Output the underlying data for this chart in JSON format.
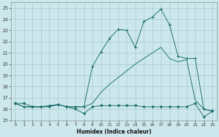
{
  "title": "",
  "xlabel": "Humidex (Indice chaleur)",
  "bg_color": "#cce8ec",
  "grid_color": "#aacdd4",
  "line_color": "#1a6b6b",
  "xlim": [
    -0.5,
    23.5
  ],
  "ylim": [
    15,
    25.5
  ],
  "yticks": [
    15,
    16,
    17,
    18,
    19,
    20,
    21,
    22,
    23,
    24,
    25
  ],
  "xticks": [
    0,
    1,
    2,
    3,
    4,
    5,
    6,
    7,
    8,
    9,
    10,
    11,
    12,
    13,
    14,
    15,
    16,
    17,
    18,
    19,
    20,
    21,
    22,
    23
  ],
  "line1_y": [
    16.5,
    16.5,
    16.2,
    16.2,
    16.2,
    16.4,
    16.2,
    16.0,
    15.6,
    16.2,
    16.3,
    16.3,
    16.3,
    16.3,
    16.3,
    16.2,
    16.2,
    16.2,
    16.2,
    16.2,
    16.2,
    16.5,
    15.3,
    15.8
  ],
  "line2_y": [
    16.5,
    16.2,
    16.2,
    16.2,
    16.3,
    16.4,
    16.2,
    16.2,
    16.2,
    16.5,
    17.5,
    18.2,
    18.8,
    19.4,
    20.0,
    20.5,
    21.0,
    21.5,
    20.5,
    20.2,
    20.4,
    16.8,
    16.0,
    15.8
  ],
  "line3_y": [
    16.5,
    16.2,
    16.2,
    16.2,
    16.3,
    16.4,
    16.2,
    16.2,
    16.2,
    19.8,
    21.1,
    22.3,
    23.1,
    23.0,
    21.5,
    23.8,
    24.2,
    24.9,
    23.5,
    20.7,
    20.5,
    20.5,
    16.0,
    15.8
  ]
}
